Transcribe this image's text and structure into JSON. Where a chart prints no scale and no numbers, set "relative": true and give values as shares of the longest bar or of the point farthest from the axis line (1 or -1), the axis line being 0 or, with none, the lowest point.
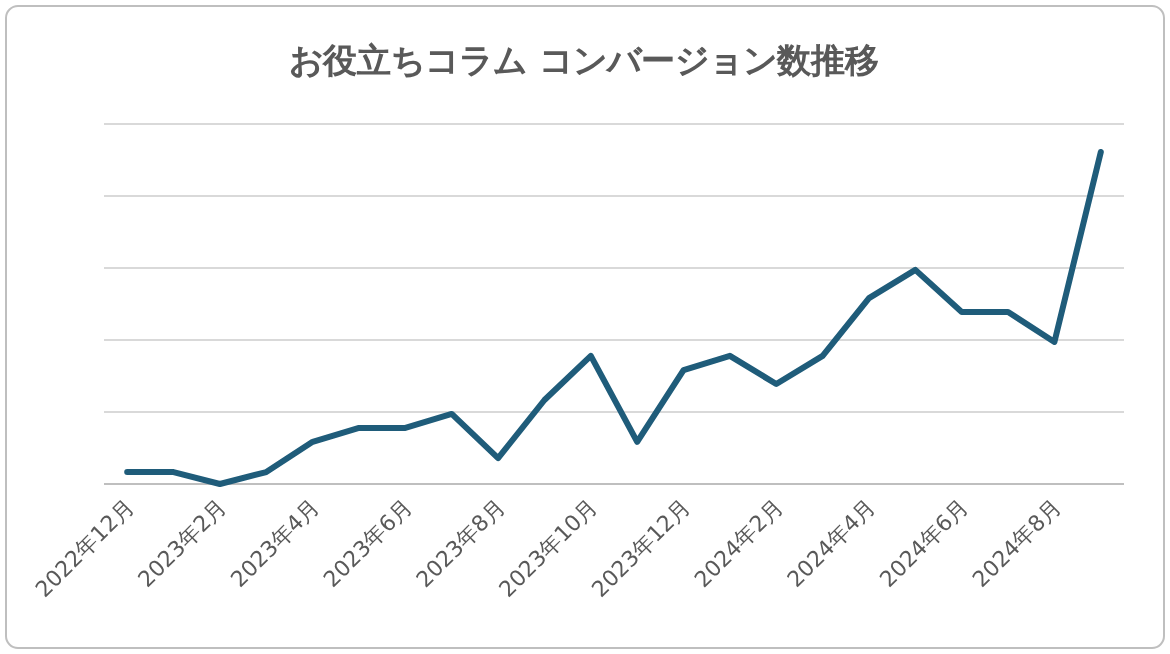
{
  "chart_data": {
    "type": "line",
    "title": "お役立ちコラム コンバージョン数推移",
    "relative": true,
    "grid": "y",
    "marker": "none",
    "line_style": "solid",
    "categories": [
      "2022年12月",
      null,
      "2023年2月",
      null,
      "2023年4月",
      null,
      "2023年6月",
      null,
      "2023年8月",
      null,
      "2023年10月",
      null,
      "2023年12月",
      null,
      "2024年2月",
      null,
      "2024年4月",
      null,
      "2024年6月",
      null,
      "2024年8月",
      null
    ],
    "series": [
      {
        "color": "#1f5c7a",
        "values": [
          0.036,
          0.036,
          0,
          0.036,
          0.127,
          0.169,
          0.169,
          0.211,
          0.078,
          0.253,
          0.386,
          0.127,
          0.343,
          0.386,
          0.301,
          0.386,
          0.56,
          0.645,
          0.518,
          0.518,
          0.428,
          1
        ]
      }
    ]
  }
}
